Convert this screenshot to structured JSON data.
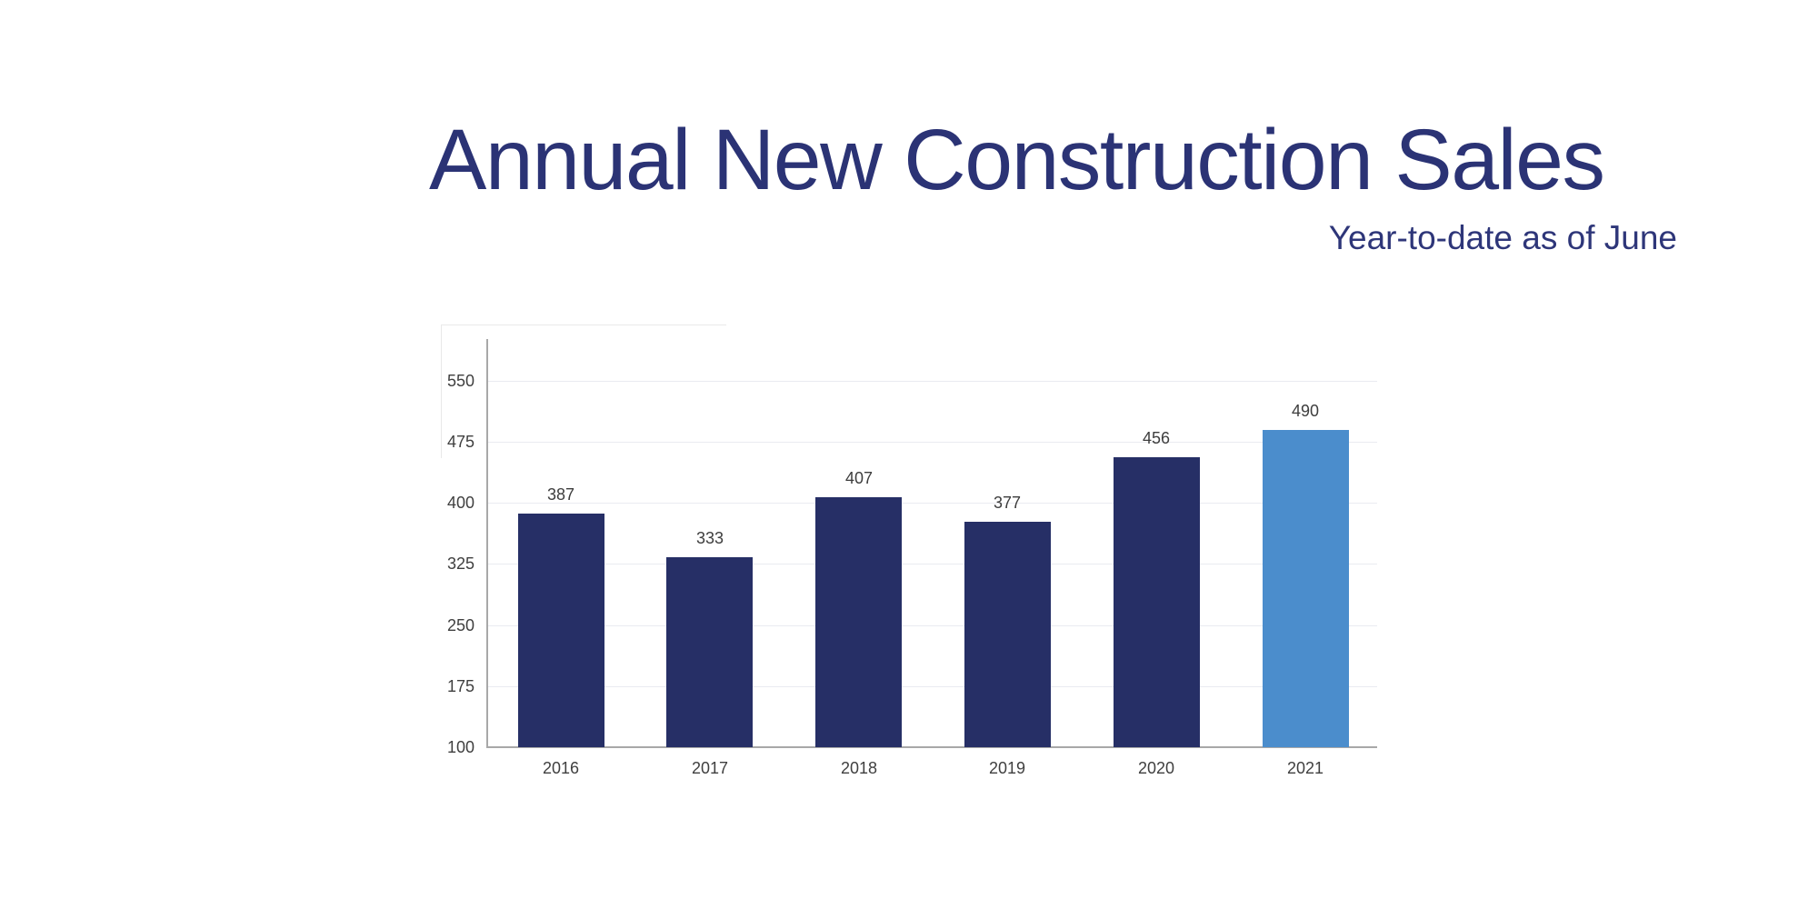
{
  "title": "Annual New Construction Sales",
  "subtitle": "Year-to-date as of June",
  "colors": {
    "title_text": "#2b3375",
    "subtitle_text": "#2e3679",
    "bar_default": "#262f66",
    "bar_highlight": "#4b8dcc",
    "value_label_text": "#3d3d3d",
    "tick_label_text": "#3f3f3f",
    "gridline": "#eaebf1",
    "axis_line": "#a8a8a8"
  },
  "chart_data": {
    "type": "bar",
    "title": "Annual New Construction Sales",
    "subtitle": "Year-to-date as of June",
    "categories": [
      "2016",
      "2017",
      "2018",
      "2019",
      "2020",
      "2021"
    ],
    "values": [
      387,
      333,
      407,
      377,
      456,
      490
    ],
    "highlight_category": "2021",
    "xlabel": "",
    "ylabel": "",
    "ylim": [
      100,
      600
    ],
    "yticks": [
      100,
      175,
      250,
      325,
      400,
      475,
      550
    ],
    "grid": true,
    "legend": false,
    "bar_colors": {
      "default": "#262f66",
      "2021": "#4b8dcc"
    }
  }
}
